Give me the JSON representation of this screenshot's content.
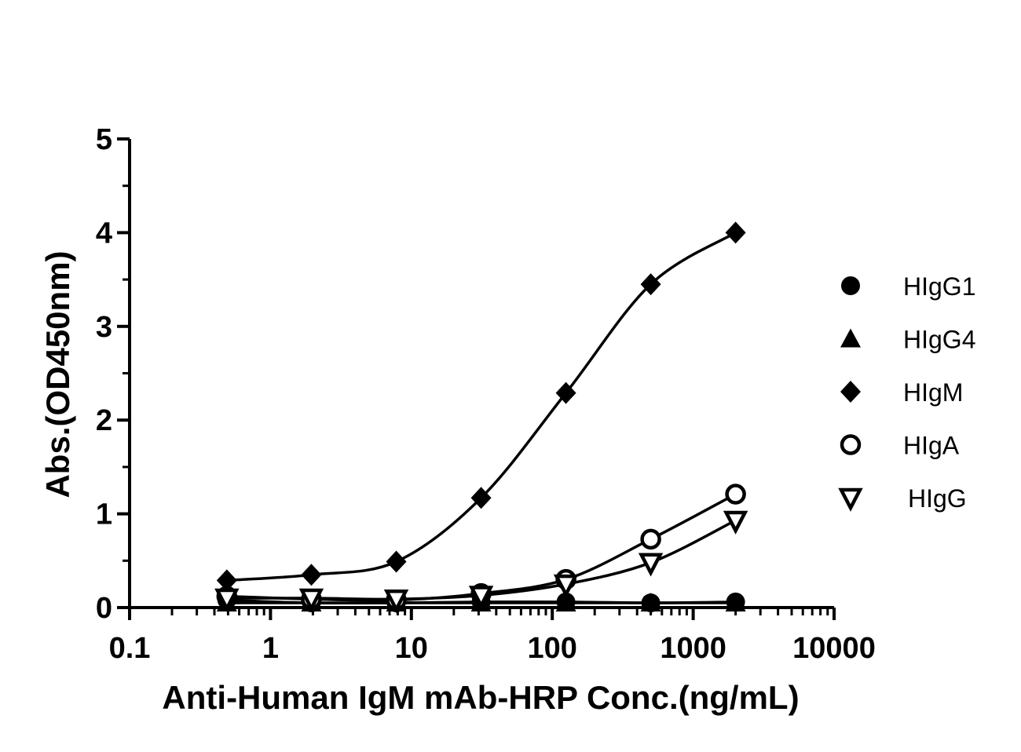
{
  "chart_data": {
    "type": "scatter",
    "title": "",
    "xlabel": "Anti-Human IgM mAb-HRP Conc.(ng/mL)",
    "ylabel": "Abs.(OD450nm)",
    "xscale": "log",
    "xlim": [
      0.1,
      10000
    ],
    "ylim": [
      0,
      5
    ],
    "x_ticks": [
      0.1,
      1,
      10,
      100,
      1000,
      10000
    ],
    "x_tick_labels": [
      "0.1",
      "1",
      "10",
      "100",
      "1000",
      "10000"
    ],
    "y_ticks": [
      0,
      1,
      2,
      3,
      4,
      5
    ],
    "y_tick_labels": [
      "0",
      "1",
      "2",
      "3",
      "4",
      "5"
    ],
    "x": [
      0.49,
      1.95,
      7.81,
      31.25,
      125,
      500,
      2000
    ],
    "legend_position": "right",
    "grid": false,
    "series": [
      {
        "name": "HIgG1",
        "marker": "circle-filled",
        "values": [
          0.08,
          0.05,
          0.05,
          0.06,
          0.06,
          0.05,
          0.06
        ]
      },
      {
        "name": "HIgG4",
        "marker": "triangle-up-filled",
        "values": [
          0.05,
          0.05,
          0.05,
          0.05,
          0.05,
          0.05,
          0.05
        ]
      },
      {
        "name": "HIgM",
        "marker": "diamond-filled",
        "values": [
          0.29,
          0.35,
          0.49,
          1.17,
          2.29,
          3.45,
          4.0
        ]
      },
      {
        "name": "HIgA",
        "marker": "circle-open",
        "values": [
          0.12,
          0.09,
          0.08,
          0.15,
          0.3,
          0.73,
          1.21
        ]
      },
      {
        "name": "HIgG",
        "marker": "triangle-down-open",
        "values": [
          0.1,
          0.1,
          0.09,
          0.13,
          0.25,
          0.48,
          0.93
        ]
      }
    ]
  }
}
